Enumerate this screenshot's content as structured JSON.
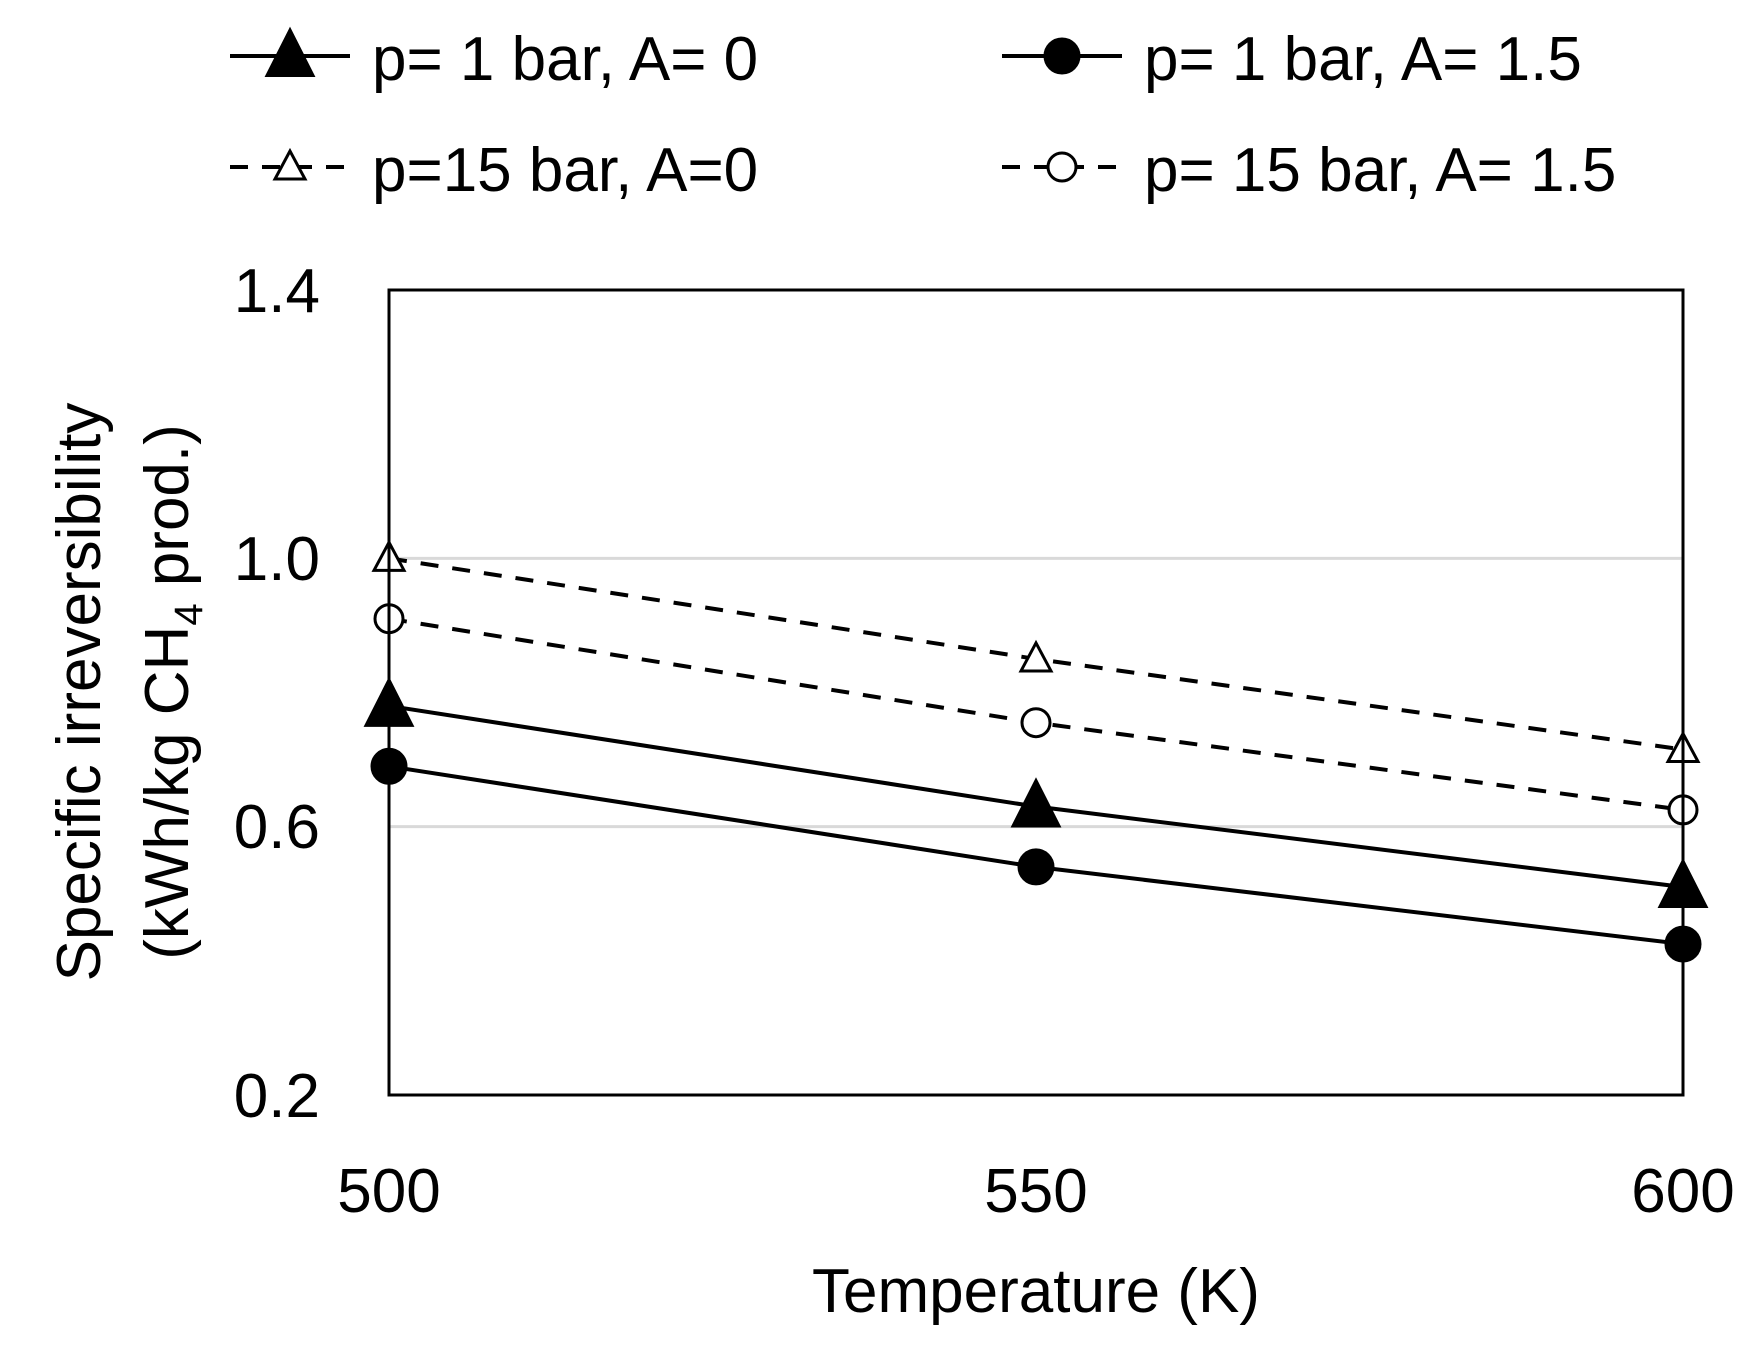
{
  "chart_data": {
    "type": "line",
    "title": "",
    "xlabel": "Temperature (K)",
    "ylabel": {
      "line1": "Specific irreversibility",
      "line2_prefix": "(kWh/kg CH",
      "line2_sub": "4",
      "line2_suffix": " prod.)"
    },
    "x": [
      500,
      550,
      600
    ],
    "xlim": [
      500,
      600
    ],
    "ylim": [
      0.2,
      1.4
    ],
    "x_ticks": [
      "500",
      "550",
      "600"
    ],
    "y_ticks": [
      "0.2",
      "0.6",
      "1.0",
      "1.4"
    ],
    "gridlines": [
      0.6,
      1.0
    ],
    "grid_color": "#d9d9d9",
    "legend_position": "top",
    "series": [
      {
        "name": "p= 1 bar, A= 0",
        "values": [
          0.78,
          0.63,
          0.51
        ],
        "marker": "triangle",
        "filled": true,
        "dashed": false
      },
      {
        "name": "p= 1 bar, A= 1.5",
        "values": [
          0.69,
          0.54,
          0.425
        ],
        "marker": "circle",
        "filled": true,
        "dashed": false
      },
      {
        "name": "p=15 bar, A=0",
        "values": [
          1.0,
          0.85,
          0.715
        ],
        "marker": "triangle",
        "filled": false,
        "dashed": true
      },
      {
        "name": "p= 15 bar, A= 1.5",
        "values": [
          0.91,
          0.755,
          0.625
        ],
        "marker": "circle",
        "filled": false,
        "dashed": true
      }
    ]
  }
}
